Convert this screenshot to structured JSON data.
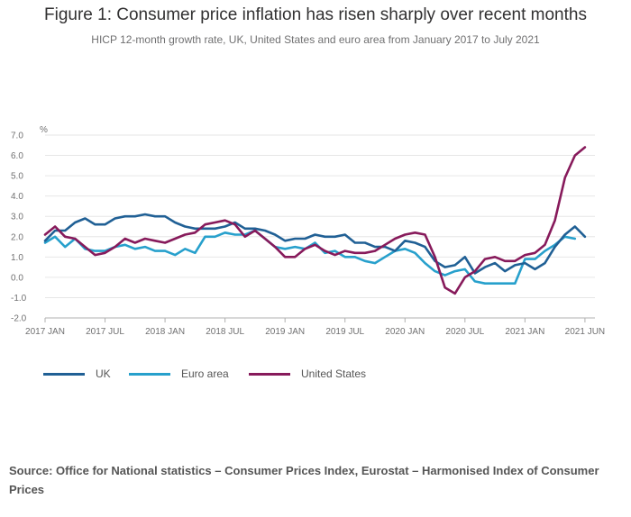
{
  "title": "Figure 1: Consumer price inflation has risen sharply over recent months",
  "subtitle": "HICP 12-month growth rate, UK, United States and euro area from January 2017 to July 2021",
  "source": "Source: Office for National statistics – Consumer Prices Index, Eurostat – Harmonised Index of Consumer Prices",
  "colors": {
    "uk": "#206095",
    "euro": "#27a0cc",
    "us": "#871a5b",
    "grid": "#e6e6e6",
    "axis": "#b0b0b0"
  },
  "chart_data": {
    "type": "line",
    "title": "Figure 1: Consumer price inflation has risen sharply over recent months",
    "ylabel": "%",
    "xlabel": "",
    "ylim": [
      -2.0,
      7.0
    ],
    "yticks": [
      "7.0",
      "6.0",
      "5.0",
      "4.0",
      "3.0",
      "2.0",
      "1.0",
      "0.0",
      "-1.0",
      "-2.0"
    ],
    "ytick_values": [
      7,
      6,
      5,
      4,
      3,
      2,
      1,
      0,
      -1,
      -2
    ],
    "xticks": [
      "2017 JAN",
      "2017 JUL",
      "2018 JAN",
      "2018 JUL",
      "2019 JAN",
      "2019 JUL",
      "2020 JAN",
      "2020 JUL",
      "2021 JAN",
      "2021 JUN"
    ],
    "xtick_months": [
      0,
      6,
      12,
      18,
      24,
      30,
      36,
      42,
      48,
      54
    ],
    "x_start": "2017 JAN",
    "series": [
      {
        "name": "UK",
        "color": "#206095",
        "values": [
          1.8,
          2.3,
          2.3,
          2.7,
          2.9,
          2.6,
          2.6,
          2.9,
          3.0,
          3.0,
          3.1,
          3.0,
          3.0,
          2.7,
          2.5,
          2.4,
          2.4,
          2.4,
          2.5,
          2.7,
          2.4,
          2.4,
          2.3,
          2.1,
          1.8,
          1.9,
          1.9,
          2.1,
          2.0,
          2.0,
          2.1,
          1.7,
          1.7,
          1.5,
          1.5,
          1.3,
          1.8,
          1.7,
          1.5,
          0.8,
          0.5,
          0.6,
          1.0,
          0.2,
          0.5,
          0.7,
          0.3,
          0.6,
          0.7,
          0.4,
          0.7,
          1.5,
          2.1,
          2.5,
          2.0
        ]
      },
      {
        "name": "Euro area",
        "color": "#27a0cc",
        "values": [
          1.7,
          2.0,
          1.5,
          1.9,
          1.4,
          1.3,
          1.3,
          1.5,
          1.6,
          1.4,
          1.5,
          1.3,
          1.3,
          1.1,
          1.4,
          1.2,
          2.0,
          2.0,
          2.2,
          2.1,
          2.1,
          2.3,
          1.9,
          1.5,
          1.4,
          1.5,
          1.4,
          1.7,
          1.2,
          1.3,
          1.0,
          1.0,
          0.8,
          0.7,
          1.0,
          1.3,
          1.4,
          1.2,
          0.7,
          0.3,
          0.1,
          0.3,
          0.4,
          -0.2,
          -0.3,
          -0.3,
          -0.3,
          -0.3,
          0.9,
          0.9,
          1.3,
          1.6,
          2.0,
          1.9
        ]
      },
      {
        "name": "United States",
        "color": "#871a5b",
        "values": [
          2.1,
          2.5,
          2.0,
          1.9,
          1.5,
          1.1,
          1.2,
          1.5,
          1.9,
          1.7,
          1.9,
          1.8,
          1.7,
          1.9,
          2.1,
          2.2,
          2.6,
          2.7,
          2.8,
          2.6,
          2.0,
          2.3,
          1.9,
          1.5,
          1.0,
          1.0,
          1.4,
          1.6,
          1.3,
          1.1,
          1.3,
          1.2,
          1.2,
          1.3,
          1.6,
          1.9,
          2.1,
          2.2,
          2.1,
          1.0,
          -0.5,
          -0.8,
          0.0,
          0.3,
          0.9,
          1.0,
          0.8,
          0.8,
          1.1,
          1.2,
          1.6,
          2.8,
          4.9,
          6.0,
          6.4
        ]
      }
    ]
  }
}
